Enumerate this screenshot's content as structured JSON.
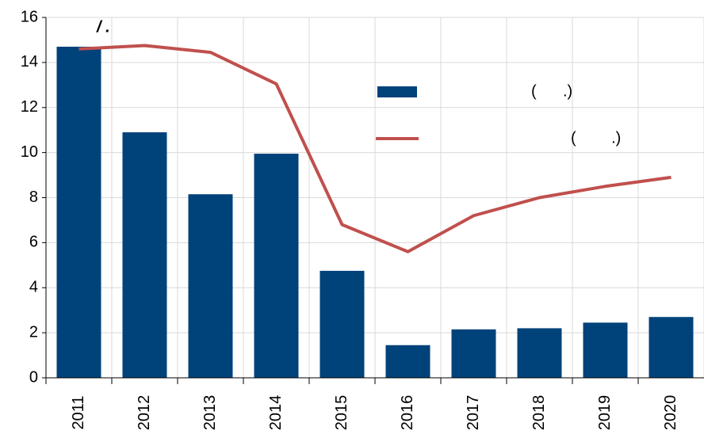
{
  "chart_data": {
    "type": "bar_line",
    "title": "/      .",
    "categories": [
      "2011",
      "2012",
      "2013",
      "2014",
      "2015",
      "2016",
      "2017",
      "2018",
      "2019",
      "2020"
    ],
    "series": [
      {
        "name": "(      .)",
        "color": "#00427a",
        "type": "bar",
        "values": [
          14.7,
          10.9,
          8.15,
          9.95,
          4.75,
          1.45,
          2.15,
          2.2,
          2.45,
          2.7
        ]
      },
      {
        "name": "(        .)",
        "color": "#c0504d",
        "type": "line",
        "values": [
          14.6,
          14.75,
          14.45,
          13.05,
          6.8,
          5.6,
          7.2,
          8.0,
          8.5,
          8.9
        ]
      }
    ],
    "ylim": [
      0,
      16
    ],
    "yticks": [
      0,
      2,
      4,
      6,
      8,
      10,
      12,
      14,
      16
    ],
    "grid": true
  }
}
